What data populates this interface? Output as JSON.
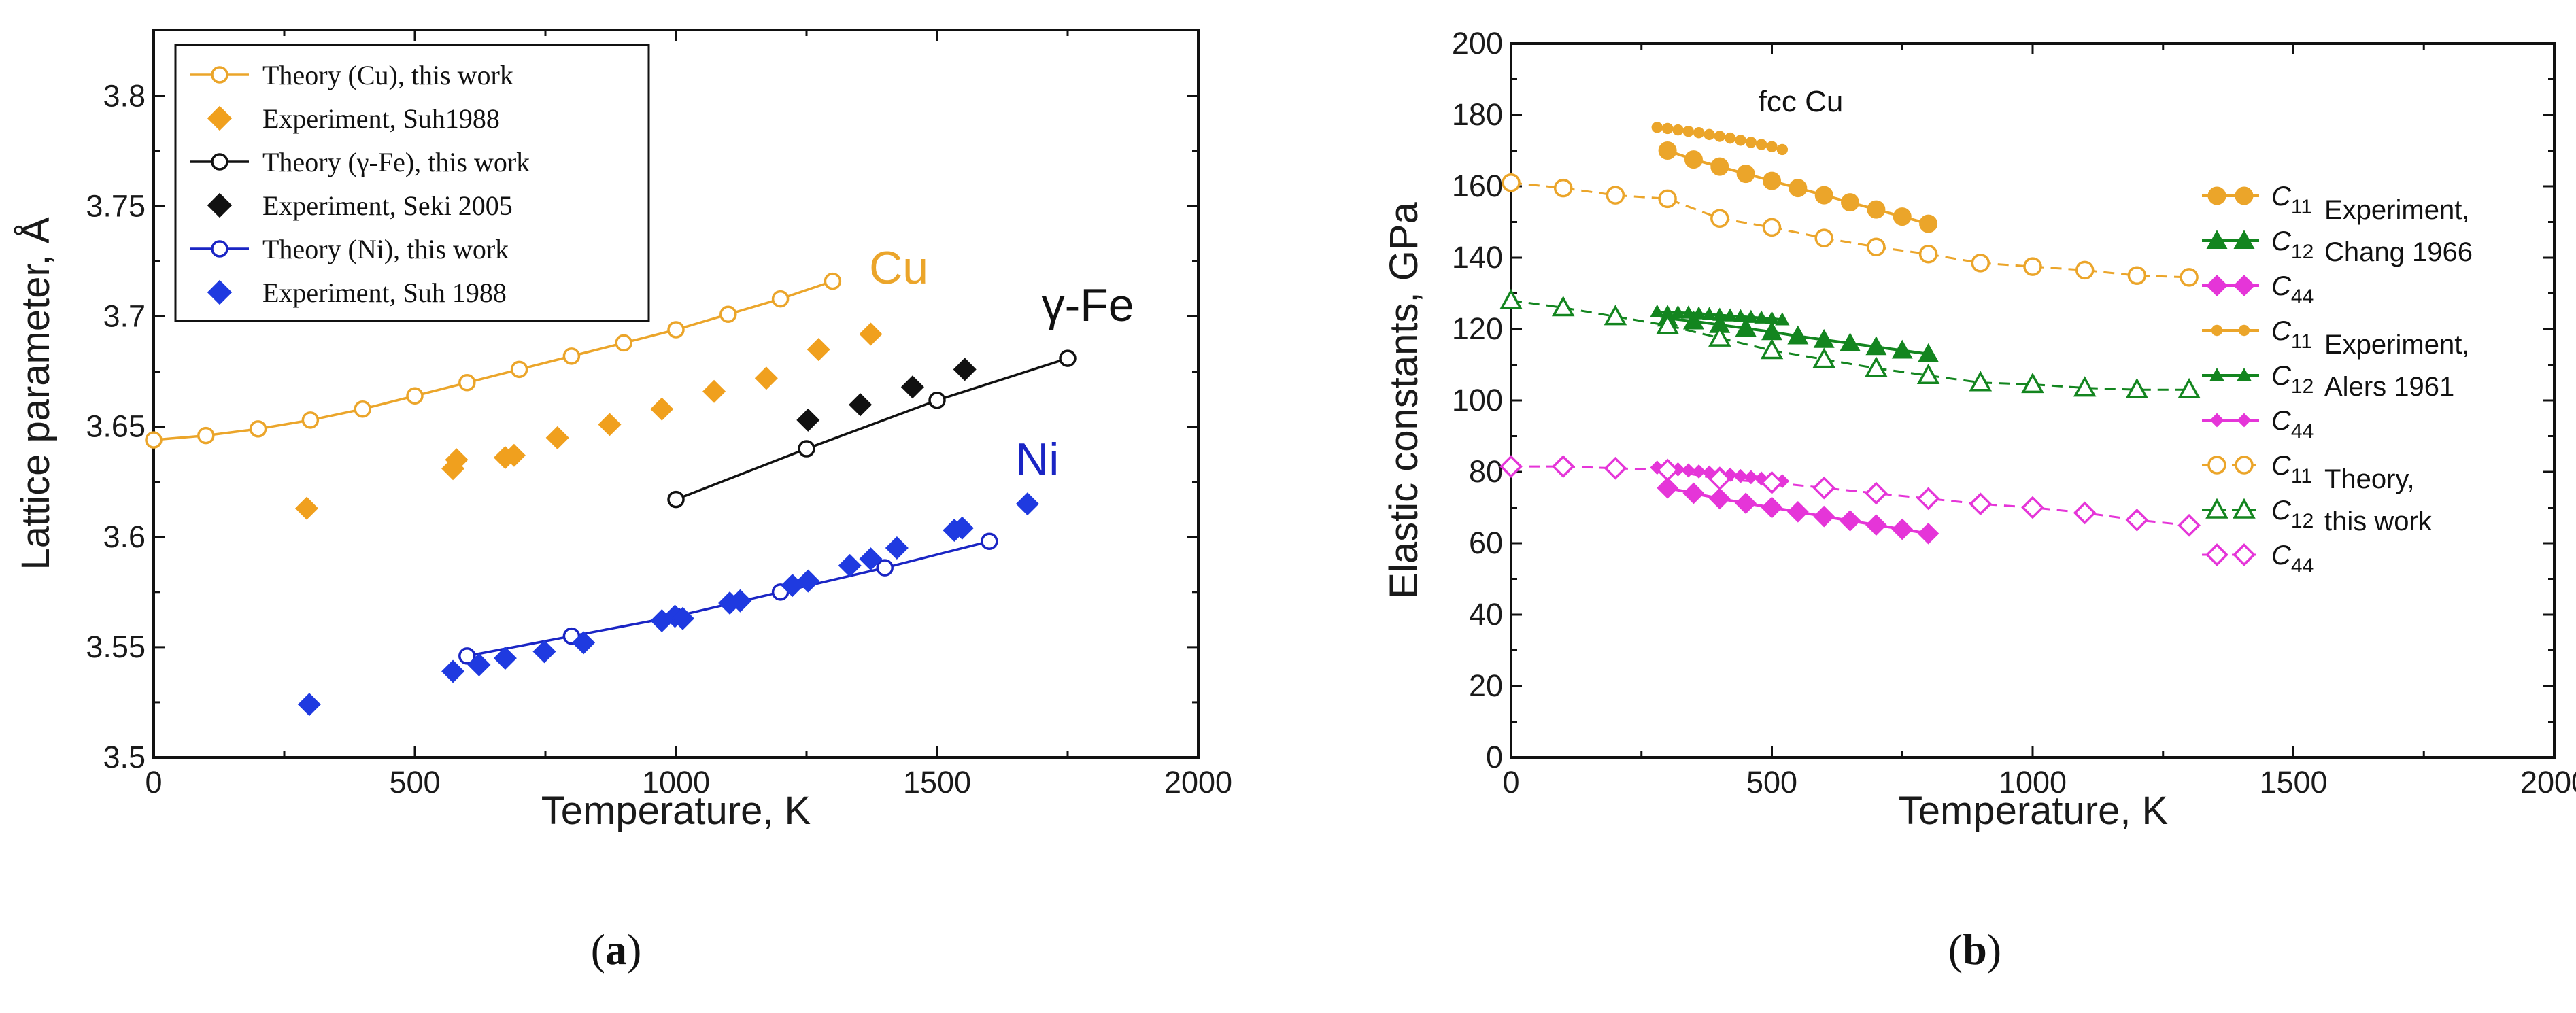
{
  "chart_data": [
    {
      "type": "line",
      "panel": "a",
      "xlabel": "Temperature, K",
      "ylabel": "Lattice parameter, Å",
      "xlim": [
        0,
        2000
      ],
      "ylim": [
        3.5,
        3.83
      ],
      "xticks": [
        0,
        500,
        1000,
        1500,
        2000
      ],
      "xtick_labels": [
        "0",
        "500",
        "1000",
        "1500",
        "2000"
      ],
      "yticks": [
        3.5,
        3.55,
        3.6,
        3.65,
        3.7,
        3.75,
        3.8
      ],
      "ytick_labels": [
        "3.5",
        "3.55",
        "3.6",
        "3.65",
        "3.7",
        "3.75",
        "3.8"
      ],
      "legend_position": "top-left",
      "series": [
        {
          "name": "Theory (Cu), this work",
          "kind": "theory",
          "color": "#eba52a",
          "x": [
            0,
            100,
            200,
            300,
            400,
            500,
            600,
            700,
            800,
            900,
            1000,
            1100,
            1200,
            1300
          ],
          "y": [
            3.644,
            3.646,
            3.649,
            3.653,
            3.658,
            3.664,
            3.67,
            3.676,
            3.682,
            3.688,
            3.694,
            3.701,
            3.708,
            3.716
          ]
        },
        {
          "name": "Experiment, Suh1988",
          "kind": "exp",
          "color": "#f0a01e",
          "x": [
            293,
            573,
            580,
            673,
            690,
            773,
            873,
            973,
            1073,
            1173,
            1273,
            1373
          ],
          "y": [
            3.613,
            3.631,
            3.635,
            3.636,
            3.637,
            3.645,
            3.651,
            3.658,
            3.666,
            3.672,
            3.685,
            3.692
          ]
        },
        {
          "name": "Theory (γ-Fe), this work",
          "kind": "theory",
          "color": "#111111",
          "x": [
            1000,
            1250,
            1500,
            1750
          ],
          "y": [
            3.617,
            3.64,
            3.662,
            3.681
          ]
        },
        {
          "name": "Experiment, Seki 2005",
          "kind": "exp",
          "color": "#111111",
          "x": [
            1253,
            1353,
            1453,
            1553
          ],
          "y": [
            3.653,
            3.66,
            3.668,
            3.676
          ]
        },
        {
          "name": "Theory (Ni), this work",
          "kind": "theory",
          "color": "#1a25c4",
          "x": [
            600,
            800,
            1000,
            1200,
            1400,
            1600
          ],
          "y": [
            3.546,
            3.555,
            3.564,
            3.575,
            3.586,
            3.598
          ]
        },
        {
          "name": "Experiment, Suh 1988",
          "kind": "exp",
          "color": "#1f3ae0",
          "x": [
            298,
            573,
            623,
            673,
            748,
            823,
            973,
            998,
            1013,
            1103,
            1123,
            1223,
            1253,
            1333,
            1373,
            1423,
            1533,
            1548,
            1673
          ],
          "y": [
            3.524,
            3.539,
            3.542,
            3.545,
            3.548,
            3.552,
            3.562,
            3.564,
            3.563,
            3.57,
            3.571,
            3.578,
            3.58,
            3.587,
            3.59,
            3.595,
            3.603,
            3.604,
            3.615
          ]
        }
      ],
      "annotations": [
        {
          "text": "Cu",
          "x": 1370,
          "y": 3.715,
          "color": "#eba52a"
        },
        {
          "text": "γ-Fe",
          "x": 1700,
          "y": 3.698,
          "color": "#111111"
        },
        {
          "text": "Ni",
          "x": 1650,
          "y": 3.628,
          "color": "#1a25c4"
        }
      ]
    },
    {
      "type": "line",
      "panel": "b",
      "title": "fcc Cu",
      "xlabel": "Temperature, K",
      "ylabel": "Elastic constants, GPa",
      "xlim": [
        0,
        2000
      ],
      "ylim": [
        0,
        200
      ],
      "xticks": [
        0,
        500,
        1000,
        1500,
        2000
      ],
      "xtick_labels": [
        "0",
        "500",
        "1000",
        "1500",
        "2000"
      ],
      "yticks": [
        0,
        20,
        40,
        60,
        80,
        100,
        120,
        140,
        160,
        180,
        200
      ],
      "ytick_labels": [
        "0",
        "20",
        "40",
        "60",
        "80",
        "100",
        "120",
        "140",
        "160",
        "180",
        "200"
      ],
      "legend_position": "right",
      "series": [
        {
          "name": "C11",
          "group": "Experiment, Chang 1966",
          "marker": "circle-filled",
          "color": "#eba52a",
          "x": [
            300,
            350,
            400,
            450,
            500,
            550,
            600,
            650,
            700,
            750,
            800
          ],
          "y": [
            170,
            167.5,
            165.5,
            163.5,
            161.5,
            159.5,
            157.5,
            155.5,
            153.5,
            151.5,
            149.5
          ]
        },
        {
          "name": "C12",
          "group": "Experiment, Chang 1966",
          "marker": "triangle-filled",
          "color": "#13851f",
          "x": [
            300,
            350,
            400,
            450,
            500,
            550,
            600,
            650,
            700,
            750,
            800
          ],
          "y": [
            123,
            122.2,
            121.2,
            120.2,
            119.2,
            118,
            117,
            116,
            115,
            114,
            113
          ]
        },
        {
          "name": "C44",
          "group": "Experiment, Chang 1966",
          "marker": "diamond-filled",
          "color": "#e535d8",
          "x": [
            300,
            350,
            400,
            450,
            500,
            550,
            600,
            650,
            700,
            750,
            800
          ],
          "y": [
            75.5,
            74,
            72.5,
            71.2,
            70,
            68.8,
            67.5,
            66.3,
            65.1,
            63.9,
            62.7
          ]
        },
        {
          "name": "C11",
          "group": "Experiment, Alers 1961",
          "marker": "small-circle",
          "color": "#eba52a",
          "x": [
            280,
            300,
            320,
            340,
            360,
            380,
            400,
            420,
            440,
            460,
            480,
            500,
            520
          ],
          "y": [
            176.5,
            176.2,
            175.8,
            175.4,
            175,
            174.5,
            174,
            173.5,
            172.9,
            172.3,
            171.7,
            171.1,
            170.3
          ]
        },
        {
          "name": "C12",
          "group": "Experiment, Alers 1961",
          "marker": "small-triangle",
          "color": "#13851f",
          "x": [
            280,
            300,
            320,
            340,
            360,
            380,
            400,
            420,
            440,
            460,
            480,
            500,
            520
          ],
          "y": [
            124.8,
            124.7,
            124.6,
            124.5,
            124.3,
            124.1,
            123.9,
            123.7,
            123.5,
            123.3,
            123.1,
            122.9,
            122.6
          ]
        },
        {
          "name": "C44",
          "group": "Experiment, Alers 1961",
          "marker": "small-diamond",
          "color": "#e535d8",
          "x": [
            280,
            300,
            320,
            340,
            360,
            380,
            400,
            420,
            440,
            460,
            480,
            500,
            520
          ],
          "y": [
            81.2,
            81,
            80.7,
            80.4,
            80.1,
            79.8,
            79.5,
            79.2,
            78.8,
            78.5,
            78.1,
            77.8,
            77.4
          ]
        },
        {
          "name": "C11",
          "group": "Theory, this work",
          "marker": "circle-open",
          "color": "#eba52a",
          "x": [
            0,
            100,
            200,
            300,
            400,
            500,
            600,
            700,
            800,
            900,
            1000,
            1100,
            1200,
            1300
          ],
          "y": [
            161,
            159.5,
            157.5,
            156.5,
            151,
            148.5,
            145.5,
            143,
            141,
            138.5,
            137.5,
            136.5,
            135,
            134.5
          ]
        },
        {
          "name": "C12",
          "group": "Theory, this work",
          "marker": "triangle-open",
          "color": "#13851f",
          "x": [
            0,
            100,
            200,
            300,
            400,
            500,
            600,
            700,
            800,
            900,
            1000,
            1100,
            1200,
            1300
          ],
          "y": [
            128,
            126,
            123.5,
            121,
            117.5,
            114,
            111.5,
            109,
            107,
            105,
            104.5,
            103.5,
            103,
            103
          ]
        },
        {
          "name": "C44",
          "group": "Theory, this work",
          "marker": "diamond-open",
          "color": "#e535d8",
          "x": [
            0,
            100,
            200,
            300,
            400,
            500,
            600,
            700,
            800,
            900,
            1000,
            1100,
            1200,
            1300
          ],
          "y": [
            81.5,
            81.5,
            81,
            80.5,
            78,
            77,
            75.5,
            74,
            72.5,
            71,
            70,
            68.5,
            66.5,
            65
          ]
        }
      ],
      "legend_groups": [
        "Experiment, Chang 1966",
        "Experiment, Alers 1961",
        "Theory, this work"
      ]
    }
  ],
  "panel_a": {
    "legend": [
      "Theory (Cu), this work",
      "Experiment, Suh1988",
      "Theory (γ-Fe), this work",
      "Experiment, Seki 2005",
      "Theory (Ni), this work",
      "Experiment, Suh 1988"
    ],
    "caption_open": "(",
    "caption_letter": "a",
    "caption_close": ")"
  },
  "panel_b": {
    "legend": [
      {
        "sym": "C",
        "sub": "11",
        "note": "Experiment,"
      },
      {
        "sym": "C",
        "sub": "12",
        "note": "Chang 1966"
      },
      {
        "sym": "C",
        "sub": "44",
        "note": ""
      },
      {
        "sym": "C",
        "sub": "11",
        "note": "Experiment,"
      },
      {
        "sym": "C",
        "sub": "12",
        "note": "Alers 1961"
      },
      {
        "sym": "C",
        "sub": "44",
        "note": ""
      },
      {
        "sym": "C",
        "sub": "11",
        "note": "Theory,"
      },
      {
        "sym": "C",
        "sub": "12",
        "note": "this work"
      },
      {
        "sym": "C",
        "sub": "44",
        "note": ""
      }
    ],
    "caption_open": "(",
    "caption_letter": "b",
    "caption_close": ")"
  }
}
